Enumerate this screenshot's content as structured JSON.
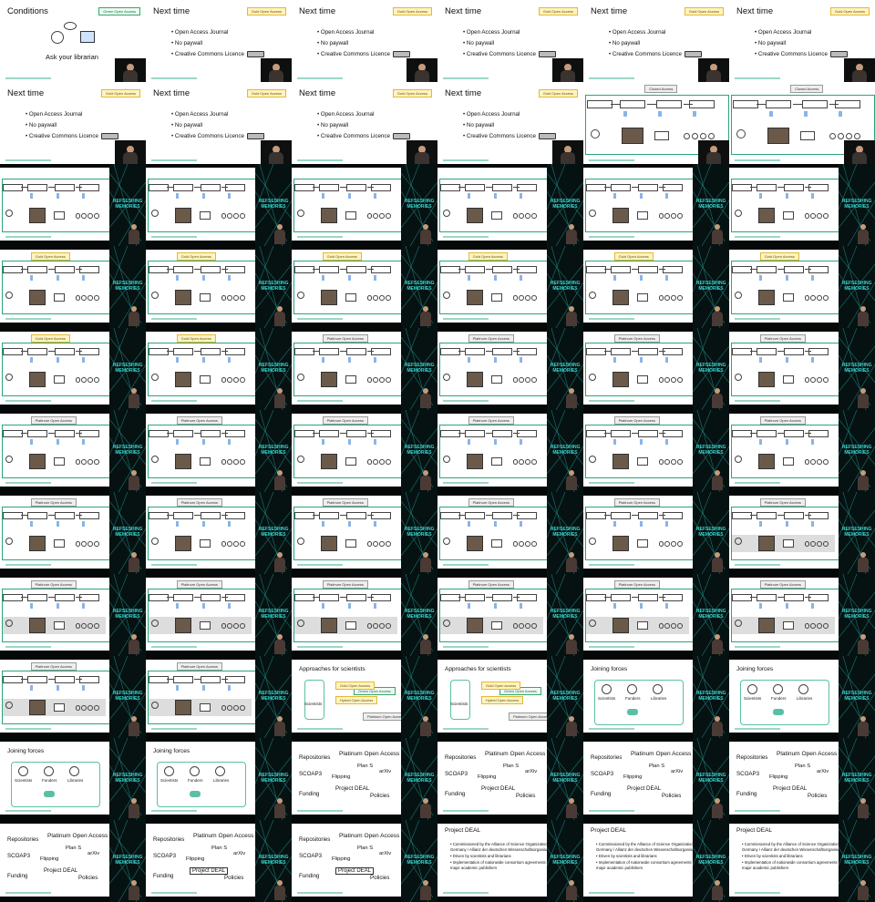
{
  "screen": {
    "background": "#000000"
  },
  "text": {
    "conditions": "Conditions",
    "next_time": "Next time",
    "green_oa": "Green Open Access",
    "gold_oa": "Gold Open Access",
    "platinum_oa": "Platinum Open Access",
    "hybrid_oa": "Hybrid Open Access",
    "ask_librarian": "Ask your librarian",
    "bullets": [
      "Open Access Journal",
      "No paywall",
      "Creative Commons Licence"
    ],
    "approaches": "Approaches for scientists",
    "joining": "Joining forces",
    "scientists": "Scientists",
    "funders": "Funders",
    "libraries": "Libraries",
    "closed_access": "Closed Access",
    "word_terms": [
      "Repositories",
      "Platinum Open Access",
      "Plan S",
      "arXiv",
      "SCOAP3",
      "Flipping",
      "Project DEAL",
      "Funding",
      "Policies"
    ],
    "project_deal": "Project DEAL",
    "deal_bullets": [
      "Commissioned by the Alliance of Science Organizations in Germany / Allianz der deutschen Wissenschaftsorganisationen",
      "Driven by scientists and librarians",
      "Implementation of nationwide consortium agreements with major academic publishers"
    ],
    "logo": "REFSESHING MEMORIES"
  },
  "cells": [
    "conditions",
    "next",
    "next",
    "next",
    "next",
    "next",
    "next",
    "next",
    "next",
    "next",
    "diagram",
    "diagram",
    "diag-side",
    "diag-side",
    "diag-side",
    "diag-side",
    "diag-side",
    "diag-side",
    "diag-side",
    "diag-side",
    "diag-side",
    "diag-side",
    "diag-side",
    "diag-side",
    "diag-side",
    "diag-side",
    "diag-side",
    "diag-side",
    "diag-side",
    "diag-side",
    "diag-side",
    "diag-side",
    "diag-side",
    "diag-side",
    "diag-side",
    "diag-side",
    "diag-side",
    "diag-side",
    "diag-side",
    "diag-side",
    "diag-side",
    "diag-side",
    "diag-side",
    "diag-side",
    "diag-side",
    "diag-side",
    "diag-side",
    "diag-side",
    "diag-side",
    "diag-side",
    "approaches",
    "approaches",
    "joining",
    "joining",
    "joining",
    "joining",
    "words",
    "words",
    "words",
    "words",
    "words",
    "words-pd",
    "words-pd",
    "deal",
    "deal",
    "deal"
  ],
  "cell_tags": [
    "green",
    "gold",
    "gold",
    "gold",
    "gold",
    "gold",
    "gold",
    "gold",
    "gold",
    "gold",
    "closed",
    "closed",
    "none",
    "none",
    "none",
    "none",
    "none",
    "none",
    "gold",
    "gold",
    "gold",
    "gold",
    "gold",
    "gold",
    "gold",
    "gold",
    "plat",
    "plat",
    "plat",
    "plat",
    "plat",
    "plat",
    "plat",
    "plat",
    "plat",
    "plat",
    "plat",
    "plat",
    "plat",
    "plat",
    "plat",
    "plat",
    "plat",
    "plat",
    "plat",
    "plat",
    "plat",
    "plat",
    "plat",
    "plat",
    "none",
    "none",
    "none",
    "none",
    "none",
    "none",
    "none",
    "none",
    "none",
    "none",
    "none",
    "none",
    "none",
    "none",
    "none",
    "none"
  ],
  "cell_gray": [
    0,
    0,
    0,
    0,
    0,
    0,
    0,
    0,
    0,
    0,
    0,
    0,
    0,
    0,
    0,
    0,
    0,
    0,
    0,
    0,
    0,
    0,
    0,
    0,
    0,
    0,
    0,
    0,
    0,
    0,
    0,
    0,
    0,
    0,
    0,
    0,
    0,
    0,
    0,
    0,
    0,
    1,
    1,
    1,
    1,
    1,
    1,
    1,
    1,
    1,
    0,
    0,
    0,
    0,
    0,
    0,
    0,
    0,
    0,
    0,
    0,
    0,
    0,
    0,
    0,
    0
  ]
}
